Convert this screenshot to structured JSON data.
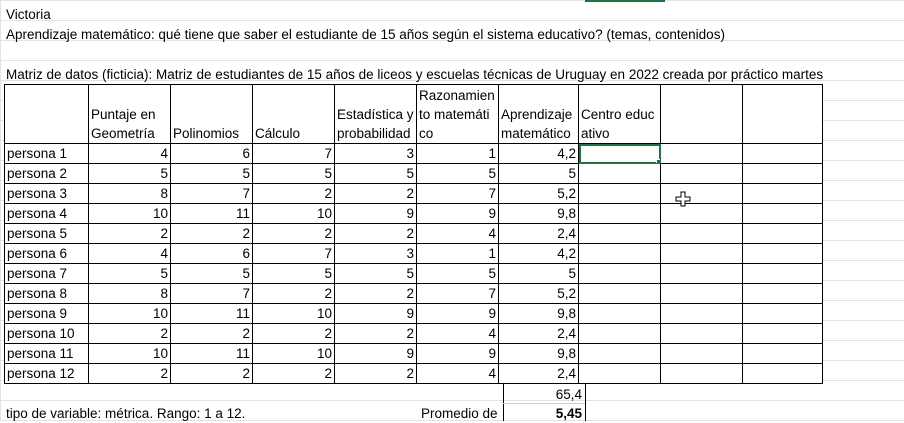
{
  "lines": {
    "name": "Victoria",
    "question": "Aprendizaje matemático: qué tiene que saber el estudiante de 15 años según el sistema educativo? (temas, contenidos)",
    "matrix": "Matriz de datos (ficticia): Matriz de estudiantes de 15 años de liceos y escuelas técnicas de Uruguay en 2022 creada por práctico martes"
  },
  "table": {
    "headers": [
      "",
      "Puntaje en Geometría",
      "Polinomios",
      "Cálculo",
      "Estadística y probabilidad",
      "Razonamiento matemático",
      "Aprendizaje matemático",
      "Centro educativo",
      "",
      ""
    ],
    "rows": [
      [
        "persona 1",
        "4",
        "6",
        "7",
        "3",
        "1",
        "4,2"
      ],
      [
        "persona 2",
        "5",
        "5",
        "5",
        "5",
        "5",
        "5"
      ],
      [
        "persona 3",
        "8",
        "7",
        "2",
        "2",
        "7",
        "5,2"
      ],
      [
        "persona 4",
        "10",
        "11",
        "10",
        "9",
        "9",
        "9,8"
      ],
      [
        "persona 5",
        "2",
        "2",
        "2",
        "2",
        "4",
        "2,4"
      ],
      [
        "persona 6",
        "4",
        "6",
        "7",
        "3",
        "1",
        "4,2"
      ],
      [
        "persona 7",
        "5",
        "5",
        "5",
        "5",
        "5",
        "5"
      ],
      [
        "persona 8",
        "8",
        "7",
        "2",
        "2",
        "7",
        "5,2"
      ],
      [
        "persona 9",
        "10",
        "11",
        "10",
        "9",
        "9",
        "9,8"
      ],
      [
        "persona 10",
        "2",
        "2",
        "2",
        "2",
        "4",
        "2,4"
      ],
      [
        "persona 11",
        "10",
        "11",
        "10",
        "9",
        "9",
        "9,8"
      ],
      [
        "persona 12",
        "2",
        "2",
        "2",
        "2",
        "4",
        "2,4"
      ]
    ]
  },
  "footer": {
    "sum": "65,4",
    "average": "5,45",
    "variable_type": "tipo de variable: métrica. Rango: 1 a 12.",
    "average_label": "Promedio de"
  },
  "colors": {
    "selection": "#217346",
    "gridline": "#e3e3e3",
    "border": "#000000"
  }
}
